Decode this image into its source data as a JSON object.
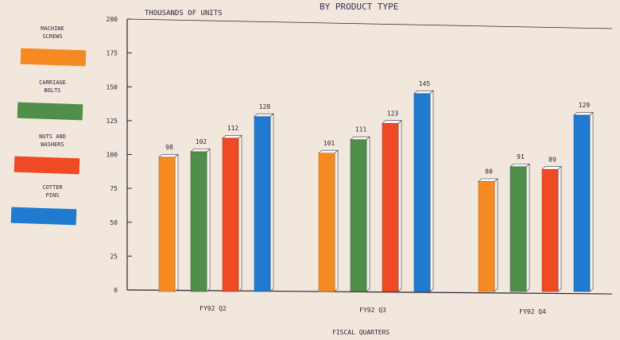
{
  "chart_data": {
    "type": "bar",
    "title": "BY PRODUCT TYPE",
    "ylabel": "THOUSANDS OF UNITS",
    "xlabel": "FISCAL QUARTERS",
    "ylim": [
      0,
      200
    ],
    "yticks": [
      0,
      25,
      50,
      75,
      100,
      125,
      150,
      175,
      200
    ],
    "ytick_labels": [
      "0",
      "25",
      "50",
      "75",
      "100",
      "125",
      "150",
      "175",
      "200"
    ],
    "categories": [
      "FY92 Q2",
      "FY92 Q3",
      "FY92 Q4"
    ],
    "legend_position": "left",
    "grid": false,
    "series": [
      {
        "name": "MACHINE SCREWS",
        "color": "#f58a22",
        "values": [
          98,
          101,
          80
        ],
        "labels": [
          "98",
          "101",
          "80"
        ]
      },
      {
        "name": "CARRIAGE BOLTS",
        "color": "#4f8f49",
        "values": [
          102,
          111,
          91
        ],
        "labels": [
          "102",
          "111",
          "91"
        ]
      },
      {
        "name": "NUTS AND WASHERS",
        "color": "#ee4a24",
        "values": [
          112,
          123,
          89
        ],
        "labels": [
          "112",
          "123",
          "89"
        ]
      },
      {
        "name": "COTTER PINS",
        "color": "#1f7ad0",
        "values": [
          128,
          145,
          129
        ],
        "labels": [
          "128",
          "145",
          "129"
        ]
      }
    ]
  }
}
